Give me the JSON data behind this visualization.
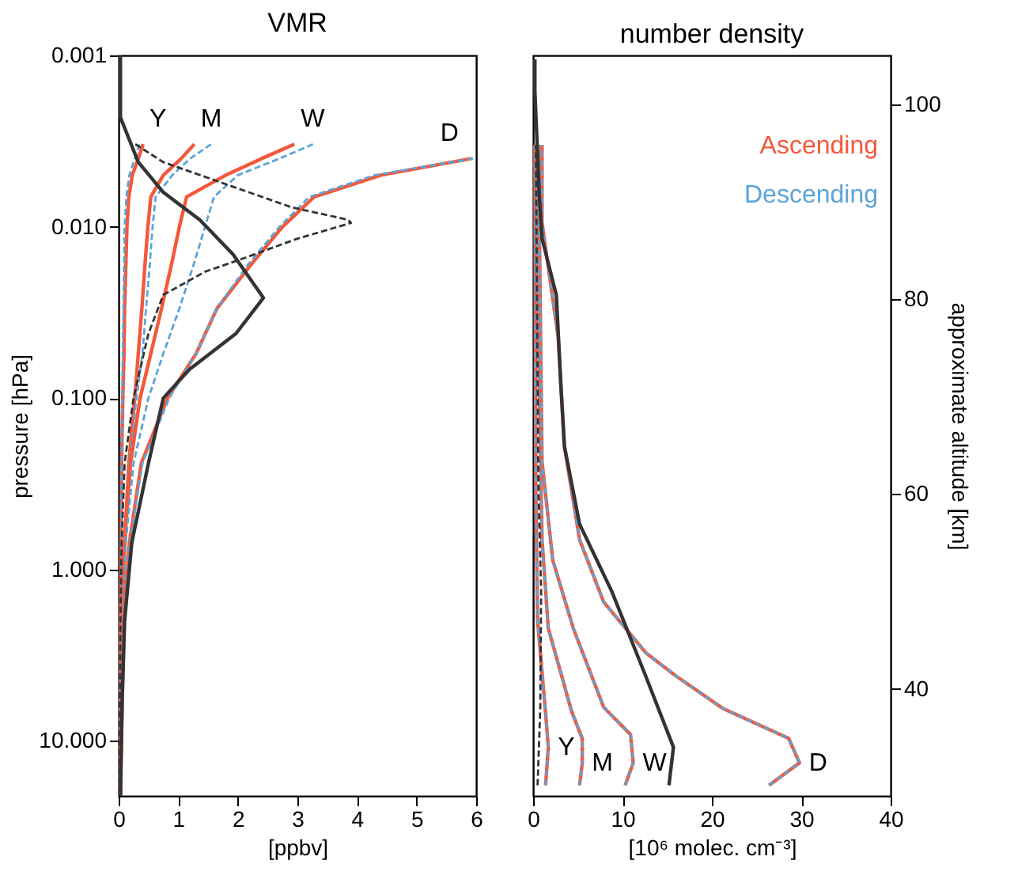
{
  "chart_data": [
    {
      "type": "line",
      "title": "VMR",
      "xlabel": "[ppbv]",
      "ylabel": "pressure [hPa]",
      "log": "y",
      "xlim": [
        0,
        6
      ],
      "xticks": [
        0,
        1,
        2,
        3,
        4,
        5,
        6
      ],
      "ylim": [
        21,
        0.001
      ],
      "yticks": [
        {
          "value": 0.001,
          "label": "0.001"
        },
        {
          "value": 0.01,
          "label": "0.010"
        },
        {
          "value": 0.1,
          "label": "0.100"
        },
        {
          "value": 1,
          "label": "1.000"
        },
        {
          "value": 10,
          "label": "10.000"
        }
      ],
      "grid": false,
      "legend": false,
      "marker": "none",
      "annotations": [
        "Y",
        "M",
        "W",
        "D"
      ],
      "series": [
        {
          "color": "#f4583a",
          "line_style": "solid",
          "x": [
            0.41,
            0.33,
            0.23,
            0.17,
            0.14,
            0.12,
            0.1,
            0.09,
            0.07,
            0.05,
            0.04,
            0.03,
            0.02,
            0.02
          ],
          "values": [
            0.0033,
            0.004,
            0.005,
            0.0067,
            0.01,
            0.017,
            0.03,
            0.055,
            0.1,
            0.24,
            0.7,
            2,
            5.7,
            21
          ]
        },
        {
          "color": "#5ca4d9",
          "line_style": "dashed",
          "x": [
            0.35,
            0.27,
            0.18,
            0.13,
            0.1,
            0.09,
            0.08,
            0.07,
            0.06,
            0.05,
            0.04,
            0.03,
            0.02,
            0.02
          ],
          "values": [
            0.0033,
            0.004,
            0.005,
            0.0067,
            0.01,
            0.017,
            0.03,
            0.055,
            0.1,
            0.24,
            0.7,
            2,
            5.7,
            21
          ]
        },
        {
          "color": "#f4583a",
          "line_style": "solid",
          "x": [
            1.27,
            1.05,
            0.75,
            0.54,
            0.49,
            0.44,
            0.39,
            0.33,
            0.27,
            0.17,
            0.1,
            0.06,
            0.04,
            0.03
          ],
          "values": [
            0.0033,
            0.004,
            0.005,
            0.0067,
            0.01,
            0.017,
            0.03,
            0.055,
            0.1,
            0.24,
            0.7,
            2,
            5.7,
            21
          ]
        },
        {
          "color": "#5ca4d9",
          "line_style": "dashed",
          "x": [
            1.55,
            1.2,
            0.9,
            0.62,
            0.57,
            0.52,
            0.46,
            0.4,
            0.3,
            0.18,
            0.1,
            0.06,
            0.04,
            0.03
          ],
          "values": [
            0.0033,
            0.004,
            0.005,
            0.0067,
            0.01,
            0.017,
            0.03,
            0.055,
            0.1,
            0.24,
            0.7,
            2,
            5.7,
            21
          ]
        },
        {
          "color": "#f4583a",
          "line_style": "solid",
          "x": [
            2.95,
            2.4,
            1.8,
            1.14,
            1.02,
            0.88,
            0.72,
            0.54,
            0.36,
            0.2,
            0.1,
            0.06,
            0.04,
            0.03
          ],
          "values": [
            0.0033,
            0.004,
            0.005,
            0.0067,
            0.01,
            0.017,
            0.03,
            0.055,
            0.1,
            0.24,
            0.7,
            2,
            5.7,
            21
          ]
        },
        {
          "color": "#5ca4d9",
          "line_style": "dashed",
          "x": [
            3.26,
            2.7,
            2.0,
            1.6,
            1.45,
            1.25,
            1.02,
            0.75,
            0.5,
            0.25,
            0.12,
            0.07,
            0.04,
            0.03
          ],
          "values": [
            0.0033,
            0.004,
            0.005,
            0.0067,
            0.01,
            0.017,
            0.03,
            0.055,
            0.1,
            0.24,
            0.7,
            2,
            5.7,
            21
          ]
        },
        {
          "color": "#f4583a",
          "line_style": "solid",
          "x": [
            5.92,
            4.4,
            3.28,
            2.75,
            2.2,
            1.65,
            1.3,
            0.82,
            0.38,
            0.18,
            0.09,
            0.06,
            0.03
          ],
          "values": [
            0.004,
            0.005,
            0.0067,
            0.01,
            0.017,
            0.03,
            0.055,
            0.1,
            0.24,
            0.7,
            2,
            5.7,
            21
          ]
        },
        {
          "color": "#5ca4d9",
          "line_style": "dashed",
          "x": [
            5.95,
            4.3,
            3.2,
            2.7,
            2.15,
            1.65,
            1.3,
            0.85,
            0.4,
            0.19,
            0.1,
            0.06,
            0.03
          ],
          "values": [
            0.004,
            0.005,
            0.0067,
            0.01,
            0.017,
            0.03,
            0.055,
            0.1,
            0.24,
            0.7,
            2,
            5.7,
            21
          ]
        },
        {
          "color": "#333333",
          "line_style": "solid",
          "x": [
            0.03,
            0.03,
            0.33,
            0.75,
            1.36,
            1.92,
            2.43,
            1.97,
            1.19,
            0.75,
            0.5,
            0.22,
            0.1,
            0.06,
            0.03
          ],
          "values": [
            0.001,
            0.0023,
            0.0042,
            0.0063,
            0.0091,
            0.0145,
            0.026,
            0.042,
            0.068,
            0.1,
            0.24,
            0.7,
            2,
            5.7,
            21
          ]
        },
        {
          "color": "#333333",
          "line_style": "dashed",
          "x": [
            0.28,
            0.75,
            2.9,
            3.85,
            3.9,
            2.98,
            2.05,
            1.45,
            0.75,
            0.5,
            0.25,
            0.1,
            0.05,
            0.03,
            0.02,
            0.02
          ],
          "values": [
            0.0033,
            0.0042,
            0.0077,
            0.0091,
            0.0095,
            0.0118,
            0.0155,
            0.0183,
            0.025,
            0.042,
            0.1,
            0.24,
            0.7,
            2,
            5.7,
            21
          ]
        }
      ]
    },
    {
      "type": "line",
      "title": "number density",
      "xlabel": "[10⁶ molec. cm⁻³]",
      "y2label": "approximate altitude [km]",
      "xlim": [
        0,
        40
      ],
      "xticks": [
        0,
        10,
        20,
        30,
        40
      ],
      "y2lim": [
        29,
        105
      ],
      "y2ticks": [
        40,
        60,
        80,
        100
      ],
      "grid": false,
      "legend": "top right",
      "marker": "none",
      "annotations": [
        "Y",
        "M",
        "W",
        "D"
      ],
      "series": [
        {
          "name": "Ascending",
          "axis": "y2",
          "color": "#f4583a",
          "line_style": "solid",
          "x": [
            1.4,
            1.7,
            1.4,
            0.5,
            0.3,
            0.2
          ],
          "values": [
            30.1,
            34,
            37.5,
            47,
            60,
            95.8
          ]
        },
        {
          "name": "Descending",
          "axis": "y2",
          "color": "#5ca4d9",
          "line_style": "dashed",
          "x": [
            1.4,
            1.7,
            1.4,
            0.5,
            0.3,
            0.2
          ],
          "values": [
            30.1,
            34,
            37.5,
            47,
            60,
            95.8
          ]
        },
        {
          "axis": "y2",
          "color": "#f4583a",
          "line_style": "solid",
          "x": [
            5.2,
            5.5,
            5.5,
            4.3,
            1.7,
            1.0,
            0.7,
            0.4
          ],
          "values": [
            30.1,
            32.4,
            34.9,
            37.7,
            46.2,
            55.3,
            71,
            95.8
          ]
        },
        {
          "axis": "y2",
          "color": "#5ca4d9",
          "line_style": "dashed",
          "x": [
            5.2,
            5.5,
            5.5,
            4.3,
            1.7,
            1.0,
            0.7,
            0.4
          ],
          "values": [
            30.1,
            32.4,
            34.9,
            37.7,
            46.2,
            55.3,
            71,
            95.8
          ]
        },
        {
          "axis": "y2",
          "color": "#f4583a",
          "line_style": "solid",
          "x": [
            10.3,
            11.2,
            10.9,
            7.9,
            4.5,
            2.2,
            1.0,
            0.9,
            0.6
          ],
          "values": [
            30.1,
            32.4,
            35.3,
            38.1,
            46.2,
            53.2,
            63.3,
            71,
            95.8
          ]
        },
        {
          "axis": "y2",
          "color": "#5ca4d9",
          "line_style": "dashed",
          "x": [
            10.3,
            11.2,
            10.9,
            7.9,
            4.5,
            2.2,
            1.0,
            0.9,
            0.6
          ],
          "values": [
            30.1,
            32.4,
            35.3,
            38.1,
            46.2,
            53.2,
            63.3,
            71,
            95.8
          ]
        },
        {
          "axis": "y2",
          "color": "#f4583a",
          "line_style": "solid",
          "x": [
            26.4,
            29.8,
            28.6,
            21.2,
            16,
            12.6,
            7.9,
            5.2,
            3.5,
            3.1,
            2.8,
            1.0,
            1.0
          ],
          "values": [
            30.1,
            32.4,
            34.9,
            38,
            41.3,
            43.7,
            48.9,
            55.3,
            64.9,
            71.3,
            76.1,
            87.8,
            95.8
          ]
        },
        {
          "axis": "y2",
          "color": "#5ca4d9",
          "line_style": "dashed",
          "x": [
            26.4,
            29.8,
            28.6,
            21.2,
            16,
            12.6,
            7.9,
            5.2,
            3.5,
            3.1,
            2.8,
            1.0,
            1.0
          ],
          "values": [
            30.1,
            32.4,
            34.9,
            38,
            41.3,
            43.7,
            48.9,
            55.3,
            64.9,
            71.3,
            76.1,
            87.8,
            95.8
          ]
        },
        {
          "axis": "y2",
          "color": "#333333",
          "line_style": "solid",
          "x": [
            15.2,
            15.7,
            12.6,
            8.8,
            5.2,
            3.5,
            3.1,
            2.6,
            1.0,
            0.7,
            0.2,
            0.2
          ],
          "values": [
            30.1,
            34,
            41.3,
            50,
            56.9,
            64.9,
            71.3,
            80.4,
            86.2,
            90.5,
            101.3,
            104.6
          ]
        },
        {
          "axis": "y2",
          "color": "#333333",
          "line_style": "dashed",
          "x": [
            0.5,
            0.8,
            0.9,
            0.6,
            0.3
          ],
          "values": [
            30.1,
            38,
            50,
            60,
            95.8
          ]
        }
      ]
    }
  ]
}
